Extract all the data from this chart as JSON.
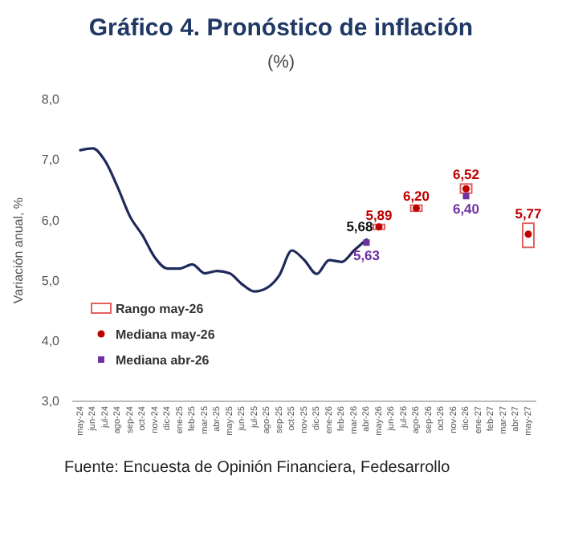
{
  "chart_data": {
    "type": "line",
    "title": "Gráfico 4. Pronóstico de inflación",
    "subtitle": "(%)",
    "ylabel": "Variación anual, %",
    "categories": [
      "may-24",
      "jun-24",
      "jul-24",
      "ago-24",
      "sep-24",
      "oct-24",
      "nov-24",
      "dic-24",
      "ene-25",
      "feb-25",
      "mar-25",
      "abr-25",
      "may-25",
      "jun-25",
      "jul-25",
      "ago-25",
      "sep-25",
      "oct-25",
      "nov-25",
      "dic-25",
      "ene-26",
      "feb-26",
      "mar-26",
      "abr-26",
      "may-26",
      "jun-26",
      "jul-26",
      "ago-26",
      "sep-26",
      "oct-26",
      "nov-26",
      "dic-26",
      "ene-27",
      "feb-27",
      "mar-27",
      "abr-27",
      "may-27"
    ],
    "ylim": [
      3,
      8
    ],
    "yticks": [
      {
        "value": 3,
        "label": "3,0"
      },
      {
        "value": 4,
        "label": "4,0"
      },
      {
        "value": 5,
        "label": "5,0"
      },
      {
        "value": 6,
        "label": "6,0"
      },
      {
        "value": 7,
        "label": "7,0"
      },
      {
        "value": 8,
        "label": "8,0"
      }
    ],
    "series": [
      {
        "color": "#1f2a5a",
        "values": [
          7.16,
          7.19,
          6.98,
          6.55,
          6.06,
          5.75,
          5.38,
          5.2,
          5.2,
          5.27,
          5.12,
          5.16,
          5.12,
          4.94,
          4.82,
          4.88,
          5.09,
          5.5,
          5.34,
          5.11,
          5.34,
          5.31,
          5.5,
          5.68,
          null,
          null,
          null,
          null,
          null,
          null,
          null,
          null,
          null,
          null,
          null,
          null,
          null
        ],
        "value_labels": [
          null,
          null,
          null,
          null,
          null,
          null,
          null,
          null,
          null,
          null,
          null,
          null,
          null,
          null,
          null,
          null,
          null,
          null,
          null,
          null,
          null,
          null,
          null,
          "5,68",
          null,
          null,
          null,
          null,
          null,
          null,
          null,
          null,
          null,
          null,
          null,
          null,
          null
        ]
      },
      {
        "type": "bar",
        "name": "Rango may-26",
        "color": "#e06060",
        "base": [
          null,
          null,
          null,
          null,
          null,
          null,
          null,
          null,
          null,
          null,
          null,
          null,
          null,
          null,
          null,
          null,
          null,
          null,
          null,
          null,
          null,
          null,
          null,
          null,
          5.85,
          null,
          null,
          6.15,
          null,
          null,
          null,
          6.45,
          null,
          null,
          null,
          null,
          5.55
        ],
        "values": [
          null,
          null,
          null,
          null,
          null,
          null,
          null,
          null,
          null,
          null,
          null,
          null,
          null,
          null,
          null,
          null,
          null,
          null,
          null,
          null,
          null,
          null,
          null,
          null,
          0.08,
          null,
          null,
          0.1,
          null,
          null,
          null,
          0.15,
          null,
          null,
          null,
          null,
          0.4
        ]
      },
      {
        "type": "scatter",
        "name": "Mediana may-26",
        "color": "#c00000",
        "marker": "circle",
        "values": [
          null,
          null,
          null,
          null,
          null,
          null,
          null,
          null,
          null,
          null,
          null,
          null,
          null,
          null,
          null,
          null,
          null,
          null,
          null,
          null,
          null,
          null,
          null,
          null,
          5.89,
          null,
          null,
          6.2,
          null,
          null,
          null,
          6.52,
          null,
          null,
          null,
          null,
          5.77
        ],
        "value_labels": [
          null,
          null,
          null,
          null,
          null,
          null,
          null,
          null,
          null,
          null,
          null,
          null,
          null,
          null,
          null,
          null,
          null,
          null,
          null,
          null,
          null,
          null,
          null,
          null,
          "5,89",
          null,
          null,
          "6,20",
          null,
          null,
          null,
          "6,52",
          null,
          null,
          null,
          null,
          "5,77"
        ]
      },
      {
        "type": "scatter",
        "name": "Mediana abr-26",
        "color": "#7030a0",
        "marker": "square",
        "values": [
          null,
          null,
          null,
          null,
          null,
          null,
          null,
          null,
          null,
          null,
          null,
          null,
          null,
          null,
          null,
          null,
          null,
          null,
          null,
          null,
          null,
          null,
          null,
          5.63,
          null,
          null,
          null,
          null,
          null,
          null,
          null,
          6.4,
          null,
          null,
          null,
          null,
          null
        ],
        "value_labels": [
          null,
          null,
          null,
          null,
          null,
          null,
          null,
          null,
          null,
          null,
          null,
          null,
          null,
          null,
          null,
          null,
          null,
          null,
          null,
          null,
          null,
          null,
          null,
          "5,63",
          null,
          null,
          null,
          null,
          null,
          null,
          null,
          "6,40",
          null,
          null,
          null,
          null,
          null
        ]
      }
    ],
    "legend": "bottom left",
    "grid": false,
    "annotations": [
      "Fuente: Encuesta de Opinión Financiera, Fedesarrollo"
    ]
  }
}
